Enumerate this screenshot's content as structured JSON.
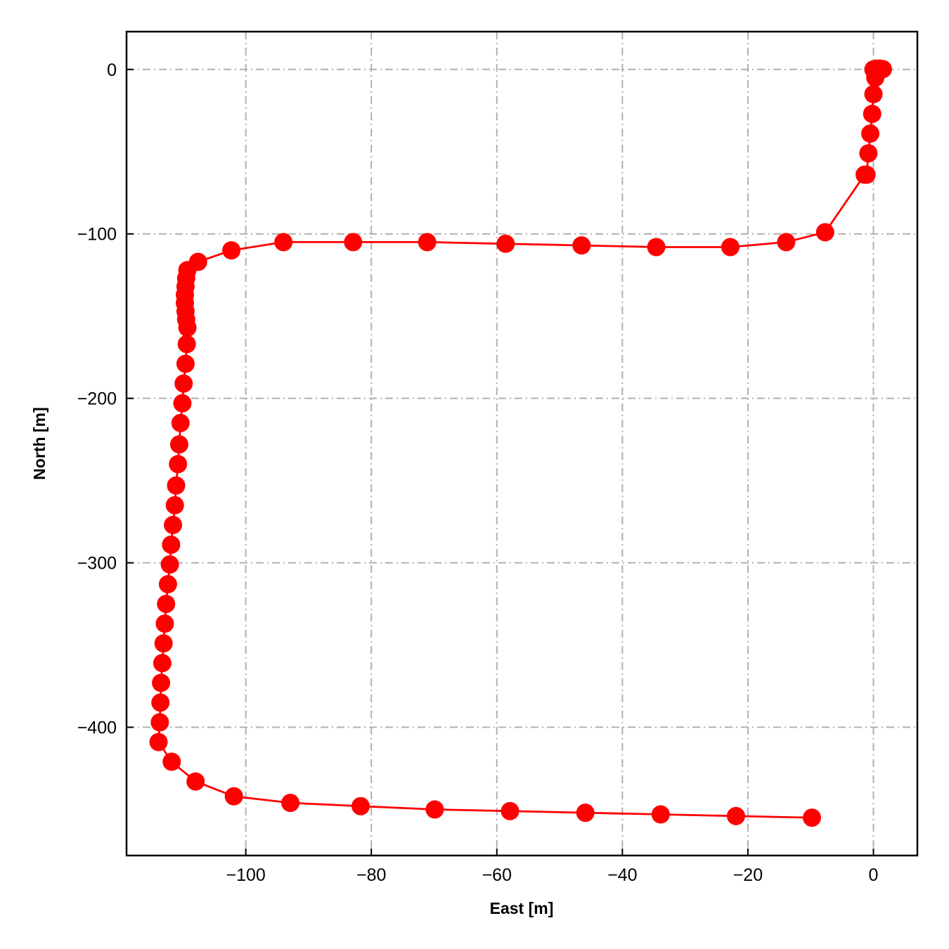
{
  "chart_data": {
    "type": "line",
    "title": "",
    "xlabel": "East [m]",
    "ylabel": "North [m]",
    "xlim": [
      -119,
      7
    ],
    "ylim": [
      -478,
      23
    ],
    "xticks": [
      -100,
      -80,
      -60,
      -40,
      -20,
      0
    ],
    "yticks": [
      0,
      -100,
      -200,
      -300,
      -400
    ],
    "xtick_labels": [
      "−100",
      "−80",
      "−60",
      "−40",
      "−20",
      "0"
    ],
    "ytick_labels": [
      "0",
      "−100",
      "−200",
      "−300",
      "−400"
    ],
    "grid": true,
    "line_color": "#ff0000",
    "marker": "circle",
    "series": [
      {
        "x": [
          0,
          0.5,
          1.0,
          1.5,
          0.3,
          0,
          -0.2,
          -0.5,
          -0.8,
          -1.1,
          -1.4,
          -7.7,
          -13.9,
          -22.8,
          -34.6,
          -46.5,
          -58.6,
          -71.1,
          -82.9,
          -94.0,
          -102.3,
          -107.6,
          -109.3,
          -109.5,
          -109.6,
          -109.7,
          -109.7,
          -109.6,
          -109.5,
          -109.3,
          -109.4,
          -109.6,
          -109.9,
          -110.1,
          -110.4,
          -110.6,
          -110.8,
          -111.1,
          -111.3,
          -111.6,
          -111.9,
          -112.1,
          -112.4,
          -112.7,
          -112.9,
          -113.1,
          -113.3,
          -113.5,
          -113.6,
          -113.7,
          -113.9,
          -111.8,
          -108.0,
          -101.9,
          -92.9,
          -81.7,
          -69.9,
          -57.9,
          -45.9,
          -33.9,
          -21.9,
          -9.8
        ],
        "y": [
          0,
          0.5,
          0.5,
          0.2,
          -5,
          -15,
          -27,
          -39,
          -51,
          -64,
          -64,
          -99,
          -105,
          -108,
          -108,
          -107,
          -106,
          -105,
          -105,
          -105,
          -110,
          -117,
          -122,
          -127,
          -132,
          -137,
          -142,
          -147,
          -152,
          -157,
          -167,
          -179,
          -191,
          -203,
          -215,
          -228,
          -240,
          -253,
          -265,
          -277,
          -289,
          -301,
          -313,
          -325,
          -337,
          -349,
          -361,
          -373,
          -385,
          -397,
          -409,
          -421,
          -433,
          -442,
          -446,
          -448,
          -450,
          -451,
          -452,
          -453,
          -454,
          -455
        ]
      }
    ]
  }
}
